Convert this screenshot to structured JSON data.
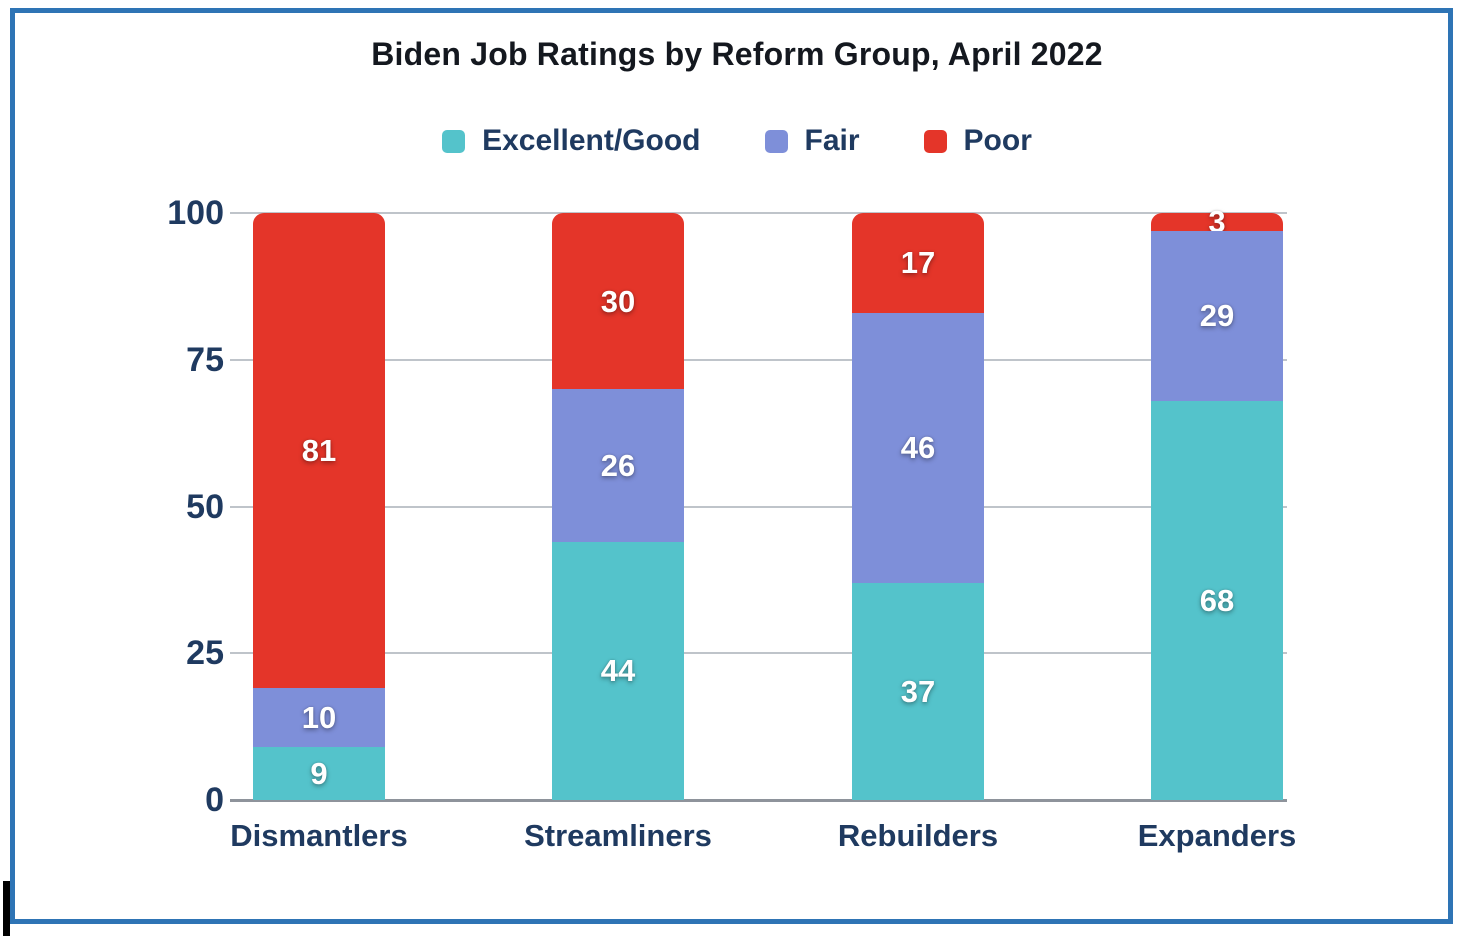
{
  "colors": {
    "border_blue": "#2e74b5",
    "title_text": "#14181f",
    "axis_text": "#1f3a60",
    "gridline": "#bfc4ca",
    "baseline": "#8e939b",
    "bar_label_text": "#ffffff",
    "excellent_good": "#54c3cb",
    "fair": "#7e8fd9",
    "poor": "#e43529"
  },
  "chart_data": {
    "type": "bar",
    "stacked": true,
    "title": "Biden Job Ratings by Reform Group, April 2022",
    "categories": [
      "Dismantlers",
      "Streamliners",
      "Rebuilders",
      "Expanders"
    ],
    "series": [
      {
        "name": "Excellent/Good",
        "color": "#54c3cb",
        "values": [
          9,
          44,
          37,
          68
        ]
      },
      {
        "name": "Fair",
        "color": "#7e8fd9",
        "values": [
          10,
          26,
          46,
          29
        ]
      },
      {
        "name": "Poor",
        "color": "#e43529",
        "values": [
          81,
          30,
          17,
          3
        ]
      }
    ],
    "xlabel": "",
    "ylabel": "",
    "y_axis": {
      "min": 0,
      "max": 100,
      "ticks": [
        0,
        25,
        50,
        75,
        100
      ]
    },
    "legend_position": "top",
    "grid": true,
    "data_labels_shown": true
  }
}
